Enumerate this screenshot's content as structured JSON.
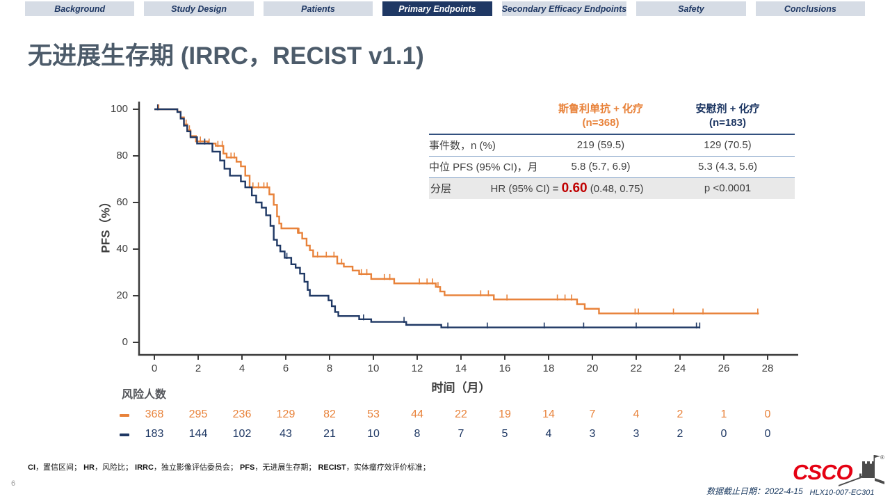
{
  "tabs": {
    "items": [
      {
        "label": "Background"
      },
      {
        "label": "Study Design"
      },
      {
        "label": "Patients"
      },
      {
        "label": "Primary Endpoints"
      },
      {
        "label": "Secondary Efficacy Endpoints"
      },
      {
        "label": "Safety"
      },
      {
        "label": "Conclusions"
      }
    ],
    "active_index": 3
  },
  "title": "无进展生存期 (IRRC，RECIST v1.1)",
  "stats_table": {
    "col1_header_line1": "斯鲁利单抗 + 化疗",
    "col1_header_line2": "(n=368)",
    "col2_header_line1": "安慰剂 + 化疗",
    "col2_header_line2": "(n=183)",
    "rows": [
      {
        "label": "事件数，n (%)",
        "col1": "219 (59.5)",
        "col2": "129 (70.5)"
      },
      {
        "label": "中位 PFS (95% CI)，月",
        "col1": "5.8 (5.7, 6.9)",
        "col2": "5.3 (4.3, 5.6)"
      }
    ],
    "hr_row": {
      "label": "分层",
      "prefix": "HR (95% CI) = ",
      "value": "0.60",
      "ci": " (0.48, 0.75)",
      "p": "p <0.0001"
    }
  },
  "chart_data": {
    "type": "line",
    "subtype": "kaplan-meier-step",
    "title": "无进展生存期 (IRRC，RECIST v1.1)",
    "xlabel": "时间（月）",
    "ylabel": "PFS（%）",
    "xlim": [
      0,
      28
    ],
    "ylim": [
      0,
      100
    ],
    "grid": false,
    "x_ticks": [
      0,
      2,
      4,
      6,
      8,
      10,
      12,
      14,
      16,
      18,
      20,
      22,
      24,
      26,
      28
    ],
    "y_ticks": [
      0,
      20,
      40,
      60,
      80,
      100
    ],
    "series": [
      {
        "id": "serplulimab-chemo",
        "name": "斯鲁利单抗 + 化疗 (n=368)",
        "color": "#E8823A",
        "median_pfs_months": 5.8,
        "points": [
          [
            0,
            100
          ],
          [
            1.05,
            99
          ],
          [
            1.2,
            96.5
          ],
          [
            1.35,
            93.5
          ],
          [
            1.5,
            91
          ],
          [
            1.65,
            88.5
          ],
          [
            1.9,
            86.2
          ],
          [
            2.45,
            85.3
          ],
          [
            2.8,
            84.3
          ],
          [
            3.15,
            81
          ],
          [
            3.3,
            79.3
          ],
          [
            3.75,
            77.5
          ],
          [
            3.95,
            75.5
          ],
          [
            4.15,
            71.5
          ],
          [
            4.35,
            66.5
          ],
          [
            5.25,
            63.5
          ],
          [
            5.45,
            59
          ],
          [
            5.6,
            54
          ],
          [
            5.7,
            51
          ],
          [
            5.8,
            48.9
          ],
          [
            6.55,
            47
          ],
          [
            6.75,
            44.5
          ],
          [
            6.95,
            41.5
          ],
          [
            7.1,
            39.5
          ],
          [
            7.25,
            36.8
          ],
          [
            8.35,
            33.8
          ],
          [
            8.65,
            32.5
          ],
          [
            9.05,
            30.8
          ],
          [
            9.35,
            29.3
          ],
          [
            9.9,
            27.2
          ],
          [
            10.95,
            25.3
          ],
          [
            12.85,
            23.8
          ],
          [
            13.05,
            21.8
          ],
          [
            13.25,
            20.2
          ],
          [
            15.5,
            18.4
          ],
          [
            19.3,
            16.4
          ],
          [
            19.65,
            14.4
          ],
          [
            20.3,
            12.4
          ]
        ],
        "end_time": 27.6,
        "censor_times": [
          0.2,
          1.45,
          1.6,
          2.1,
          2.5,
          2.9,
          3.1,
          3.5,
          3.65,
          4.5,
          4.75,
          5.0,
          5.15,
          6.6,
          7.45,
          7.85,
          8.2,
          8.55,
          9.45,
          9.7,
          10.5,
          10.75,
          12.1,
          12.45,
          12.7,
          12.95,
          14.9,
          15.25,
          16.1,
          18.4,
          18.75,
          19.05,
          21.95,
          22.1,
          23.7,
          25.05,
          27.55
        ]
      },
      {
        "id": "placebo-chemo",
        "name": "安慰剂 + 化疗 (n=183)",
        "color": "#1F3864",
        "median_pfs_months": 5.3,
        "points": [
          [
            0,
            100
          ],
          [
            1.05,
            98.8
          ],
          [
            1.2,
            96
          ],
          [
            1.35,
            93
          ],
          [
            1.5,
            90.5
          ],
          [
            1.65,
            88
          ],
          [
            1.95,
            85.3
          ],
          [
            2.65,
            81.8
          ],
          [
            3.0,
            78
          ],
          [
            3.2,
            74.5
          ],
          [
            3.45,
            71.5
          ],
          [
            3.95,
            69
          ],
          [
            4.15,
            66.5
          ],
          [
            4.45,
            63
          ],
          [
            4.65,
            60
          ],
          [
            4.9,
            57.8
          ],
          [
            5.1,
            54.5
          ],
          [
            5.3,
            50
          ],
          [
            5.45,
            44
          ],
          [
            5.6,
            41.5
          ],
          [
            5.75,
            39
          ],
          [
            5.95,
            36.3
          ],
          [
            6.25,
            33.5
          ],
          [
            6.45,
            32
          ],
          [
            6.65,
            29.5
          ],
          [
            6.85,
            26
          ],
          [
            7.0,
            22.5
          ],
          [
            7.1,
            20
          ],
          [
            7.95,
            18
          ],
          [
            8.1,
            15.5
          ],
          [
            8.25,
            13
          ],
          [
            8.4,
            11.3
          ],
          [
            9.35,
            9.9
          ],
          [
            9.9,
            8.8
          ],
          [
            11.5,
            7.5
          ],
          [
            13.1,
            6.4
          ]
        ],
        "end_time": 24.9,
        "censor_times": [
          0.15,
          1.35,
          2.3,
          6.05,
          9.55,
          11.4,
          13.4,
          15.2,
          17.8,
          19.6,
          22.0,
          24.75,
          24.9
        ]
      }
    ],
    "risk_table": {
      "title": "风险人数",
      "times": [
        0,
        2,
        4,
        6,
        8,
        10,
        12,
        14,
        16,
        18,
        20,
        22,
        24,
        26,
        28
      ],
      "series": [
        {
          "name": "斯鲁利单抗 + 化疗",
          "color": "#E8823A",
          "counts": [
            368,
            295,
            236,
            129,
            82,
            53,
            44,
            22,
            19,
            14,
            7,
            4,
            2,
            1,
            0
          ]
        },
        {
          "name": "安慰剂 + 化疗",
          "color": "#1F3864",
          "counts": [
            183,
            144,
            102,
            43,
            21,
            10,
            8,
            7,
            5,
            4,
            3,
            3,
            2,
            0,
            0
          ]
        }
      ]
    },
    "annotations": {
      "events": {
        "label": "事件数，n (%)",
        "serplulimab": "219 (59.5)",
        "placebo": "129 (70.5)"
      },
      "median": {
        "label": "中位 PFS (95% CI)，月",
        "serplulimab": "5.8 (5.7, 6.9)",
        "placebo": "5.3 (4.3, 5.6)"
      },
      "hazard_ratio": {
        "label": "分层",
        "text": "HR (95% CI) = 0.60 (0.48, 0.75)",
        "p": "p <0.0001"
      }
    }
  },
  "footnote": {
    "segments": [
      {
        "text": "CI",
        "bold": true
      },
      {
        "text": "，置信区间；  ",
        "bold": false
      },
      {
        "text": "HR",
        "bold": true
      },
      {
        "text": "，风险比；  ",
        "bold": false
      },
      {
        "text": "IRRC",
        "bold": true
      },
      {
        "text": "，独立影像评估委员会；  ",
        "bold": false
      },
      {
        "text": "PFS",
        "bold": true
      },
      {
        "text": "，无进展生存期；  ",
        "bold": false
      },
      {
        "text": "RECIST",
        "bold": true
      },
      {
        "text": "，实体瘤疗效评价标准；",
        "bold": false
      }
    ]
  },
  "footer": {
    "data_cutoff": "数据截止日期：2022-4-15",
    "study_id": "HLX10-007-EC301",
    "logo_text": "CSCO"
  },
  "page_number": "6",
  "colors": {
    "serplulimab_orange": "#E8823A",
    "placebo_navy": "#1F3864",
    "tab_inactive_bg": "#D6DCE5",
    "tab_active_bg": "#1F3864",
    "title_text": "#4C5B6A",
    "hr_value_red": "#C00000",
    "csco_red": "#E50113"
  }
}
